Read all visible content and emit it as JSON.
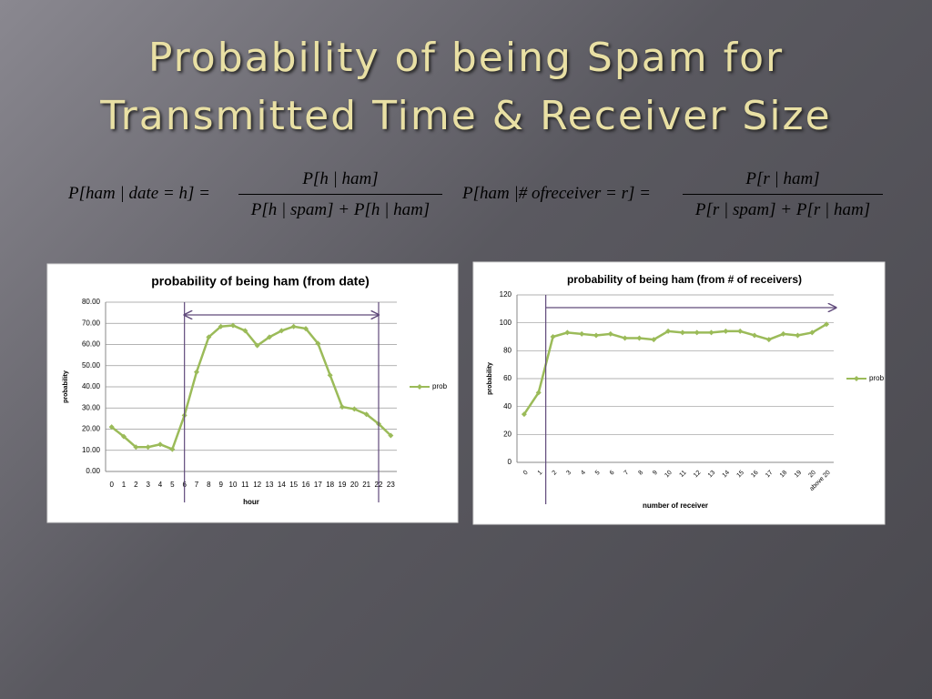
{
  "title": [
    "Probability of being Spam for",
    "Transmitted Time & Receiver Size"
  ],
  "formulas": [
    {
      "lhs": "P[ham | date = h] =",
      "numerator": "P[h | ham]",
      "denominator": "P[h | spam] + P[h | ham]"
    },
    {
      "lhs": "P[ham |# ofreceiver = r] =",
      "numerator": "P[r | ham]",
      "denominator": "P[r | spam] + P[r | ham]"
    }
  ],
  "chart_data": [
    {
      "type": "line",
      "title": "probability of being ham (from date)",
      "x_label": "hour",
      "y_label": "probability",
      "categories": [
        "0",
        "1",
        "2",
        "3",
        "4",
        "5",
        "6",
        "7",
        "8",
        "9",
        "10",
        "11",
        "12",
        "13",
        "14",
        "15",
        "16",
        "17",
        "18",
        "19",
        "20",
        "21",
        "22",
        "23"
      ],
      "series": [
        {
          "name": "prob",
          "color": "#9bbb59",
          "values": [
            21,
            16.5,
            11.5,
            11.5,
            12.8,
            10.5,
            26.5,
            47,
            63.5,
            68.5,
            69,
            66.5,
            59.5,
            63.5,
            66.5,
            68.5,
            67.5,
            60.5,
            45.5,
            30.5,
            29.5,
            27,
            22.5,
            17
          ]
        }
      ],
      "ylim": [
        0,
        80
      ],
      "yticks": [
        {
          "value": 0,
          "label": "0.00"
        },
        {
          "value": 10,
          "label": "10.00"
        },
        {
          "value": 20,
          "label": "20.00"
        },
        {
          "value": 30,
          "label": "30.00"
        },
        {
          "value": 40,
          "label": "40.00"
        },
        {
          "value": 50,
          "label": "50.00"
        },
        {
          "value": 60,
          "label": "60.00"
        },
        {
          "value": 70,
          "label": "70.00"
        },
        {
          "value": 80,
          "label": "80.00"
        }
      ],
      "grid": true,
      "legend": "right",
      "x_label_rotation": 0,
      "vlines": [
        6,
        22
      ],
      "arrow": [
        6,
        22
      ],
      "arrow_heads": "both",
      "annotation_color": "#604a7b"
    },
    {
      "type": "line",
      "title": "probability of being ham (from # of receivers)",
      "x_label": "number of receiver",
      "y_label": "probability",
      "categories": [
        "0",
        "1",
        "2",
        "3",
        "4",
        "5",
        "6",
        "7",
        "8",
        "9",
        "10",
        "11",
        "12",
        "13",
        "14",
        "15",
        "16",
        "17",
        "18",
        "19",
        "20",
        "above 20"
      ],
      "series": [
        {
          "name": "prob",
          "color": "#9bbb59",
          "values": [
            34.5,
            50,
            90,
            93,
            92,
            91,
            92,
            89,
            89,
            88,
            94,
            93,
            93,
            93,
            94,
            94,
            91,
            88,
            92,
            91,
            93,
            99
          ]
        }
      ],
      "ylim": [
        0,
        120
      ],
      "yticks": [
        0,
        20,
        40,
        60,
        80,
        100,
        120
      ],
      "grid": true,
      "legend": "right",
      "x_label_rotation": -45,
      "vlines": [
        1.5
      ],
      "arrow": [
        1.5,
        21.65
      ],
      "arrow_heads": "end",
      "annotation_color": "#604a7b"
    }
  ]
}
